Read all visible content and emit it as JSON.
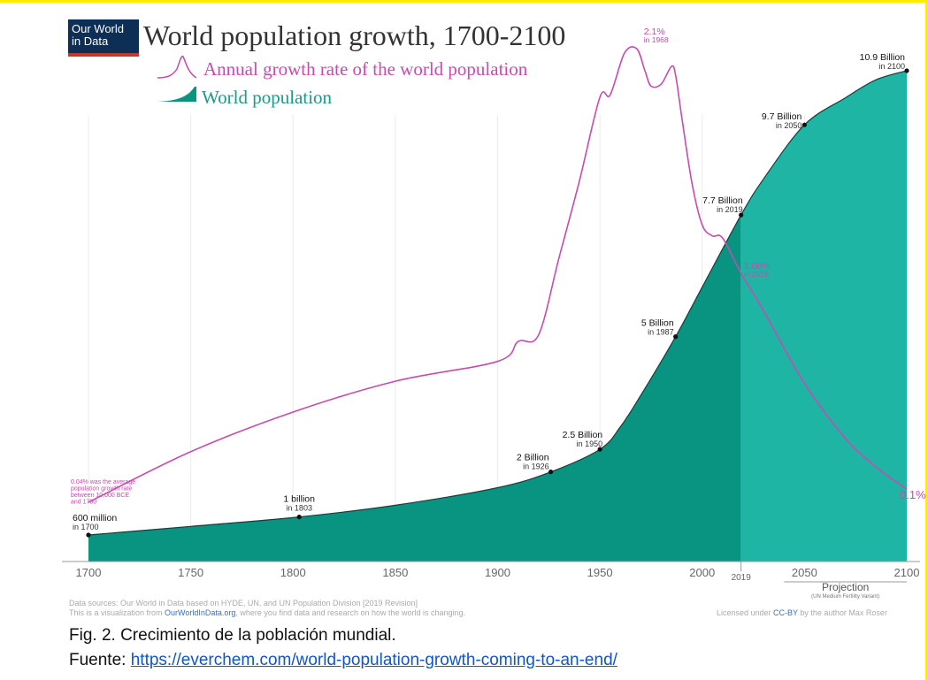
{
  "logo": {
    "line1": "Our World",
    "line2": "in Data"
  },
  "title": "World population growth, 1700-2100",
  "legend": {
    "growth_label": "Annual growth rate of the world population",
    "population_label": "World population"
  },
  "colors": {
    "population_fill": "#099381",
    "projection_fill": "#1fb5a4",
    "growth_line": "#c74cae",
    "title_text": "#333333"
  },
  "chart_data": {
    "type": "area",
    "x_ticks": [
      "1700",
      "1750",
      "1800",
      "1850",
      "1900",
      "1950",
      "2000",
      "2050",
      "2100"
    ],
    "x_tick_values": [
      1700,
      1750,
      1800,
      1850,
      1900,
      1950,
      2000,
      2050,
      2100
    ],
    "xlim": [
      1700,
      2100
    ],
    "grid": true,
    "projection_start": 2019,
    "projection_tick": "2019",
    "projection_label": "Projection",
    "projection_sublabel": "(UN Medium Fertility Variant)",
    "series": [
      {
        "name": "World population",
        "unit": "billion",
        "x": [
          1700,
          1750,
          1803,
          1850,
          1900,
          1926,
          1950,
          1960,
          1970,
          1987,
          2000,
          2019,
          2030,
          2050,
          2070,
          2085,
          2100
        ],
        "values": [
          0.6,
          0.79,
          1.0,
          1.26,
          1.65,
          2.0,
          2.5,
          3.0,
          3.7,
          5.0,
          6.1,
          7.7,
          8.5,
          9.7,
          10.3,
          10.7,
          10.9
        ]
      },
      {
        "name": "Annual growth rate of the world population",
        "unit": "percent",
        "x": [
          1700,
          1750,
          1800,
          1850,
          1900,
          1910,
          1920,
          1930,
          1940,
          1950,
          1955,
          1962,
          1968,
          1972,
          1975,
          1980,
          1985,
          1987,
          1990,
          1995,
          2000,
          2005,
          2010,
          2019,
          2030,
          2050,
          2070,
          2085,
          2100
        ],
        "values": [
          0.04,
          0.27,
          0.45,
          0.59,
          0.68,
          0.77,
          0.8,
          1.15,
          1.5,
          1.88,
          1.89,
          2.08,
          2.1,
          2.0,
          1.93,
          1.94,
          2.02,
          1.98,
          1.79,
          1.49,
          1.3,
          1.25,
          1.24,
          1.08,
          0.91,
          0.58,
          0.33,
          0.2,
          0.1
        ]
      }
    ],
    "annotations": {
      "population": [
        {
          "x": 1700,
          "value": 0.6,
          "label": "600 million",
          "sub": "in 1700"
        },
        {
          "x": 1803,
          "value": 1.0,
          "label": "1 billion",
          "sub": "in 1803"
        },
        {
          "x": 1926,
          "value": 2.0,
          "label": "2 Billion",
          "sub": "in 1926"
        },
        {
          "x": 1950,
          "value": 2.5,
          "label": "2.5 Billion",
          "sub": "in 1950"
        },
        {
          "x": 1987,
          "value": 5.0,
          "label": "5 Billion",
          "sub": "in 1987"
        },
        {
          "x": 2019,
          "value": 7.7,
          "label": "7.7 Billion",
          "sub": "in 2019"
        },
        {
          "x": 2050,
          "value": 9.7,
          "label": "9.7 Billion",
          "sub": "in 2050"
        },
        {
          "x": 2100,
          "value": 10.9,
          "label": "10.9 Billion",
          "sub": "in 2100"
        }
      ],
      "growth": [
        {
          "x": 1968,
          "value": 2.1,
          "label": "2.1%",
          "sub": "in 1968"
        },
        {
          "x": 2019,
          "value": 1.08,
          "label": "1.08%",
          "sub": "in 2019"
        },
        {
          "x": 2100,
          "value": 0.1,
          "label": "0.1%",
          "sub": ""
        }
      ],
      "note_lines": [
        "0.04% was the average",
        "population growth rate",
        "between 10,000 BCE",
        "and 1700"
      ]
    }
  },
  "footer": {
    "sources": "Data sources: Our World in Data based on HYDE, UN, and UN Population Division [2019 Revision]",
    "viz_prefix": "This is a visualization from ",
    "viz_link": "OurWorldInData.org",
    "viz_suffix": ", where you find data and research on how the world is changing.",
    "license_prefix": "Licensed under ",
    "license_link": "CC-BY",
    "license_suffix": " by the author Max Roser"
  },
  "caption": {
    "line1": "Fig. 2. Crecimiento de la población mundial.",
    "line2_prefix": "Fuente: ",
    "line2_link": "https://everchem.com/world-population-growth-coming-to-an-end/"
  }
}
